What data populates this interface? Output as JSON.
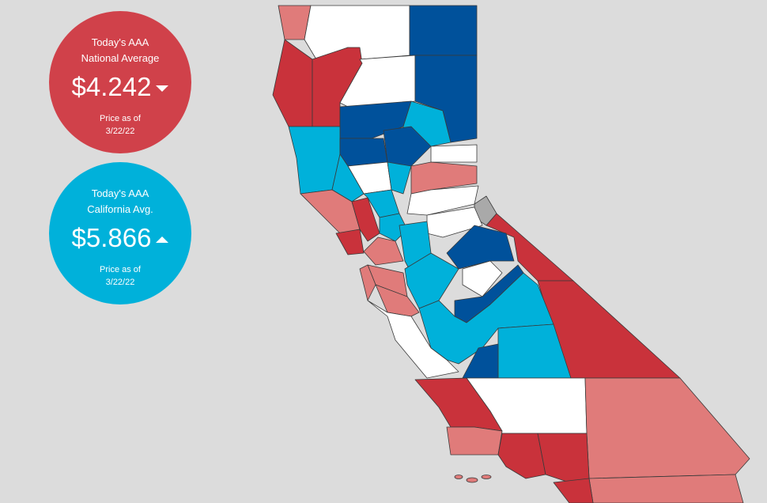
{
  "national": {
    "heading": "Today's AAA",
    "subheading": "National Average",
    "price": "$4.242",
    "note": "Price as of",
    "date": "3/22/22"
  },
  "california": {
    "heading": "Today's AAA",
    "subheading": "California Avg.",
    "price": "$5.866",
    "note": "Price as of",
    "date": "3/22/22"
  }
}
